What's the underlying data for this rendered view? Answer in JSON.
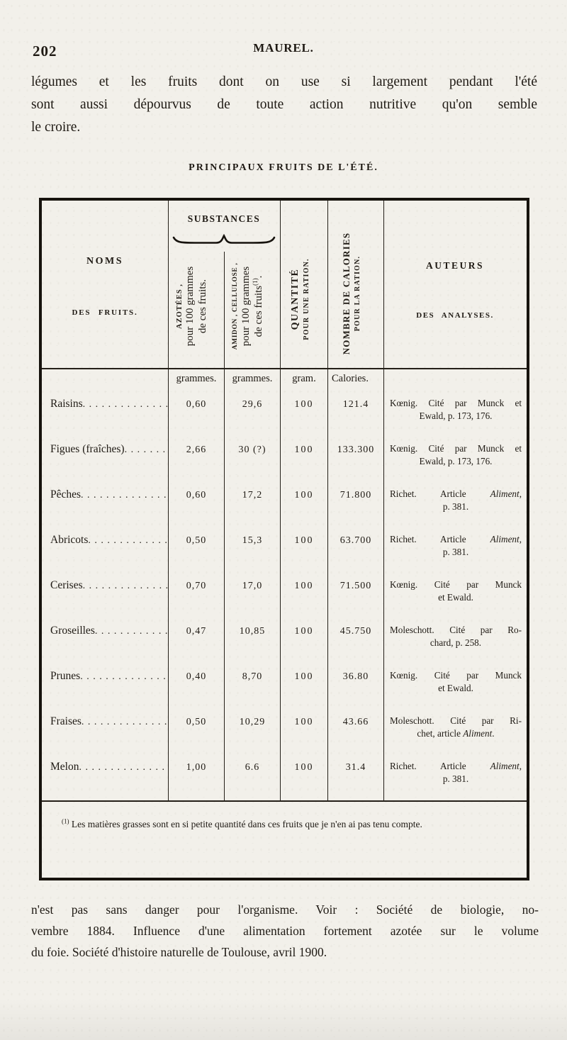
{
  "page": {
    "number": "202",
    "running_head": "MAUREL."
  },
  "intro": {
    "lines": [
      "légumes et les fruits dont on use si largement pendant l'été",
      "sont aussi dépourvus de toute action nutritive qu'on semble",
      "le croire."
    ]
  },
  "table": {
    "title": "PRINCIPAUX FRUITS DE L'ÉTÉ.",
    "header": {
      "noms_line1": "NOMS",
      "noms_line2": "DES FRUITS.",
      "substances": "SUBSTANCES",
      "sub1": {
        "caps": "AZOTÉES ,",
        "l2": "pour 100 grammes",
        "l3": "de ces fruits."
      },
      "sub2": {
        "caps": "AMIDON , CELLULOSE ,",
        "l2": "pour 100 grammes",
        "l3": "de ces fruits^(1)^."
      },
      "quantite": {
        "l1": "QUANTITÉ",
        "l2": "POUR UNE RATION."
      },
      "calories": {
        "l1": "NOMBRE DE CALORIES",
        "l2": "POUR LA RATION."
      },
      "auteurs_line1": "AUTEURS",
      "auteurs_line2": "DES ANALYSES."
    },
    "units": [
      "grammes.",
      "grammes.",
      "gram.",
      "Calories."
    ],
    "rows": [
      {
        "name": "Raisins",
        "azotees": "0,60",
        "amidon": "29,6",
        "quantite": "100",
        "calories": "121.4",
        "auteur1": "Kœnig. Cité par Munck et",
        "auteur2": "Ewald, p. 173, 176."
      },
      {
        "name": "Figues (fraîches)",
        "azotees": "2,66",
        "amidon": "30 (?)",
        "quantite": "100",
        "calories": "133.300",
        "auteur1": "Kœnig. Cité par Munck et",
        "auteur2": "Ewald, p. 173, 176."
      },
      {
        "name": "Pêches",
        "azotees": "0,60",
        "amidon": "17,2",
        "quantite": "100",
        "calories": "71.800",
        "auteur1": "Richet. Article *Aliment*,",
        "auteur2": "p. 381."
      },
      {
        "name": "Abricots",
        "azotees": "0,50",
        "amidon": "15,3",
        "quantite": "100",
        "calories": "63.700",
        "auteur1": "Richet. Article *Aliment*,",
        "auteur2": "p. 381."
      },
      {
        "name": "Cerises",
        "azotees": "0,70",
        "amidon": "17,0",
        "quantite": "100",
        "calories": "71.500",
        "auteur1": "Kœnig. Cité par Munck",
        "auteur2": "et Ewald."
      },
      {
        "name": "Groseilles",
        "azotees": "0,47",
        "amidon": "10,85",
        "quantite": "100",
        "calories": "45.750",
        "auteur1": "Moleschott. Cité par Ro-",
        "auteur2": "chard, p. 258."
      },
      {
        "name": "Prunes",
        "azotees": "0,40",
        "amidon": "8,70",
        "quantite": "100",
        "calories": "36.80",
        "auteur1": "Kœnig. Cité par Munck",
        "auteur2": "et Ewald."
      },
      {
        "name": "Fraises",
        "azotees": "0,50",
        "amidon": "10,29",
        "quantite": "100",
        "calories": "43.66",
        "auteur1": "Moleschott. Cité par Ri-",
        "auteur2": "chet, article *Aliment*."
      },
      {
        "name": "Melon",
        "azotees": "1,00",
        "amidon": "6.6",
        "quantite": "100",
        "calories": "31.4",
        "auteur1": "Richet. Article *Aliment*,",
        "auteur2": "p. 381."
      }
    ],
    "footnote": {
      "marker": "(1)",
      "text": "Les matières grasses sont en si petite quantité dans ces fruits que je n'en ai pas tenu compte."
    }
  },
  "bottom": {
    "lines": [
      "n'est pas sans danger pour l'organisme. Voir : Société de biologie, no-",
      "vembre 1884. Influence d'une alimentation fortement azotée sur le volume",
      "du foie. Société d'histoire naturelle de Toulouse, avril 1900."
    ]
  }
}
